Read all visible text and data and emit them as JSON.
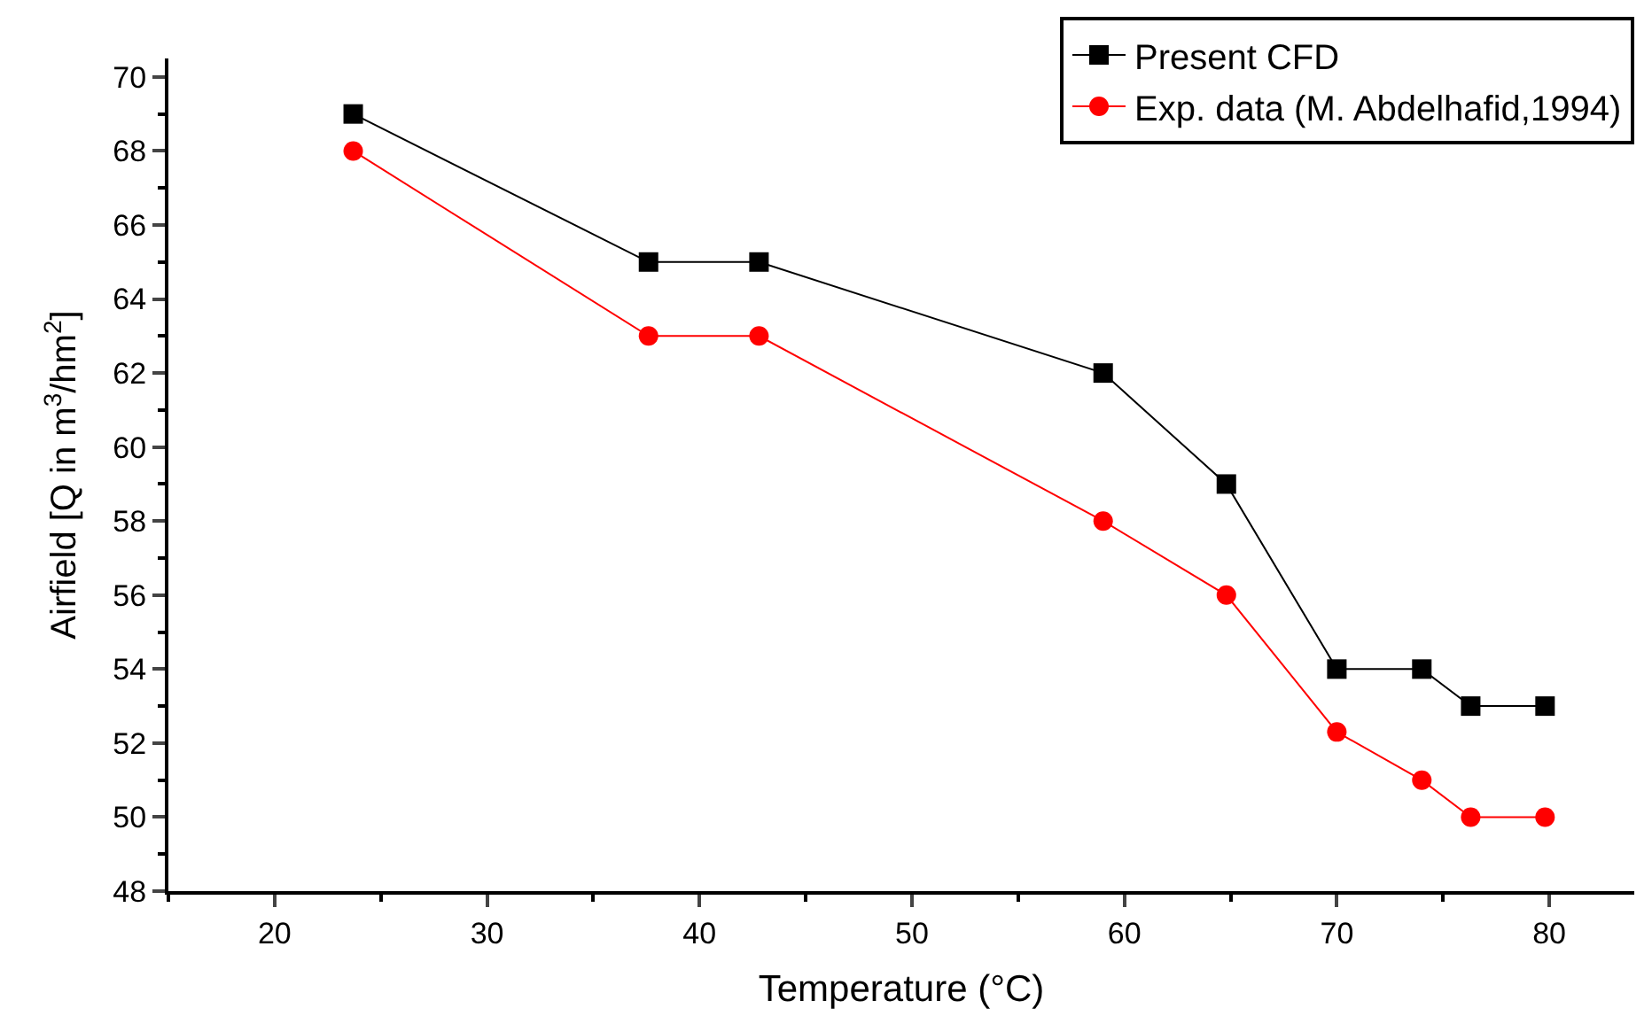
{
  "chart_data": {
    "type": "line",
    "xlabel": "Temperature (°C)",
    "ylabel": "Airfield [Q in m$^{3}$/hm$^{2}$]",
    "x": [
      23.7,
      37.6,
      42.8,
      59.0,
      64.8,
      70.0,
      74.0,
      76.3,
      79.8
    ],
    "series": [
      {
        "name": "Present CFD",
        "color": "#000000",
        "marker": "square",
        "values": [
          69,
          65,
          65,
          62,
          59,
          54,
          54,
          53,
          53
        ]
      },
      {
        "name": "Exp. data (M. Abdelhafid,1994)",
        "color": "#ff0000",
        "marker": "circle",
        "values": [
          68,
          63,
          63,
          58,
          56,
          52.3,
          51,
          50,
          50
        ]
      }
    ],
    "xlim": [
      15,
      84
    ],
    "xticks": [
      20,
      30,
      40,
      50,
      60,
      70,
      80
    ],
    "ylim": [
      48,
      70.5
    ],
    "yticks": [
      48,
      50,
      52,
      54,
      56,
      58,
      60,
      62,
      64,
      66,
      68,
      70
    ],
    "legend": "top right",
    "line_style": "solid"
  }
}
